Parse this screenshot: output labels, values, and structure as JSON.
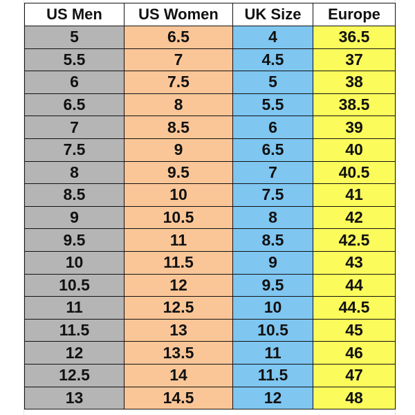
{
  "headers": {
    "us_men": "US Men",
    "us_women": "US Women",
    "uk_size": "UK Size",
    "europe": "Europe"
  },
  "rows": [
    {
      "us_men": "5",
      "us_women": "6.5",
      "uk": "4",
      "eu": "36.5"
    },
    {
      "us_men": "5.5",
      "us_women": "7",
      "uk": "4.5",
      "eu": "37"
    },
    {
      "us_men": "6",
      "us_women": "7.5",
      "uk": "5",
      "eu": "38"
    },
    {
      "us_men": "6.5",
      "us_women": "8",
      "uk": "5.5",
      "eu": "38.5"
    },
    {
      "us_men": "7",
      "us_women": "8.5",
      "uk": "6",
      "eu": "39"
    },
    {
      "us_men": "7.5",
      "us_women": "9",
      "uk": "6.5",
      "eu": "40"
    },
    {
      "us_men": "8",
      "us_women": "9.5",
      "uk": "7",
      "eu": "40.5"
    },
    {
      "us_men": "8.5",
      "us_women": "10",
      "uk": "7.5",
      "eu": "41"
    },
    {
      "us_men": "9",
      "us_women": "10.5",
      "uk": "8",
      "eu": "42"
    },
    {
      "us_men": "9.5",
      "us_women": "11",
      "uk": "8.5",
      "eu": "42.5"
    },
    {
      "us_men": "10",
      "us_women": "11.5",
      "uk": "9",
      "eu": "43"
    },
    {
      "us_men": "10.5",
      "us_women": "12",
      "uk": "9.5",
      "eu": "44"
    },
    {
      "us_men": "11",
      "us_women": "12.5",
      "uk": "10",
      "eu": "44.5"
    },
    {
      "us_men": "11.5",
      "us_women": "13",
      "uk": "10.5",
      "eu": "45"
    },
    {
      "us_men": "12",
      "us_women": "13.5",
      "uk": "11",
      "eu": "46"
    },
    {
      "us_men": "12.5",
      "us_women": "14",
      "uk": "11.5",
      "eu": "47"
    },
    {
      "us_men": "13",
      "us_women": "14.5",
      "uk": "12",
      "eu": "48"
    }
  ],
  "colors": {
    "us_men_fill": "#b5b5b5",
    "us_women_fill": "#fbc697",
    "uk_fill": "#7fc6f1",
    "europe_fill": "#fbfb5c",
    "border": "#111111"
  }
}
